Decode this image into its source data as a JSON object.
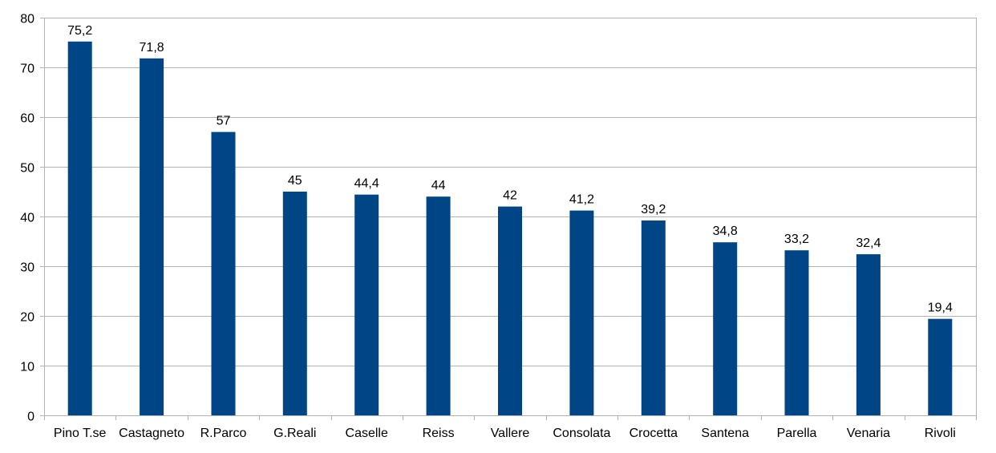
{
  "chart_data": {
    "type": "bar",
    "categories": [
      "Pino T.se",
      "Castagneto",
      "R.Parco",
      "G.Reali",
      "Caselle",
      "Reiss",
      "Vallere",
      "Consolata",
      "Crocetta",
      "Santena",
      "Parella",
      "Venaria",
      "Rivoli"
    ],
    "values": [
      75.2,
      71.8,
      57,
      45,
      44.4,
      44,
      42,
      41.2,
      39.2,
      34.8,
      33.2,
      32.4,
      19.4
    ],
    "data_labels": [
      "75,2",
      "71,8",
      "57",
      "45",
      "44,4",
      "44",
      "42",
      "41,2",
      "39,2",
      "34,8",
      "33,2",
      "32,4",
      "19,4"
    ],
    "title": "",
    "xlabel": "",
    "ylabel": "",
    "ylim": [
      0,
      80
    ],
    "yticks": [
      0,
      10,
      20,
      30,
      40,
      50,
      60,
      70,
      80
    ],
    "grid": true,
    "legend": "none",
    "bar_color": "#004586",
    "grid_color": "#b3b3b3"
  }
}
